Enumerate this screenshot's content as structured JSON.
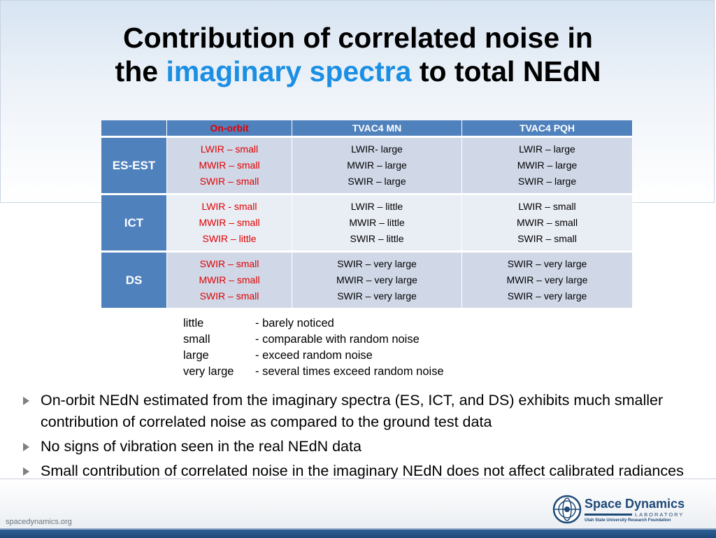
{
  "title": {
    "line1": "Contribution of correlated noise in",
    "line2_prefix": "the",
    "line2_accent": "imaginary spectra",
    "line2_suffix": "to total NEdN"
  },
  "table": {
    "headers": [
      "",
      "On-orbit",
      "TVAC4 MN",
      "TVAC4 PQH"
    ],
    "rows": [
      {
        "label": "ES-EST",
        "cells": [
          [
            "LWIR – small",
            "MWIR – small",
            "SWIR – small"
          ],
          [
            "LWIR- large",
            "MWIR – large",
            "SWIR – large"
          ],
          [
            "LWIR – large",
            "MWIR – large",
            "SWIR – large"
          ]
        ]
      },
      {
        "label": "ICT",
        "cells": [
          [
            "LWIR - small",
            "MWIR – small",
            "SWIR – little"
          ],
          [
            "LWIR – little",
            "MWIR – little",
            "SWIR – little"
          ],
          [
            "LWIR – small",
            "MWIR – small",
            "SWIR – small"
          ]
        ]
      },
      {
        "label": "DS",
        "cells": [
          [
            "SWIR – small",
            "MWIR – small",
            "SWIR – small"
          ],
          [
            "SWIR – very large",
            "MWIR – very large",
            "SWIR – very large"
          ],
          [
            "SWIR – very large",
            "MWIR – very large",
            "SWIR – very large"
          ]
        ]
      }
    ],
    "colors": {
      "header_bg": "#4f81bd",
      "onorbit_text": "#e00000",
      "row_dark": "#d0d8e8",
      "row_light": "#e9edf4"
    }
  },
  "legend": [
    {
      "term": "little",
      "desc": "- barely noticed"
    },
    {
      "term": "small",
      "desc": "- comparable with random noise"
    },
    {
      "term": "large",
      "desc": "- exceed random noise"
    },
    {
      "term": "very large",
      "desc": "- several times exceed random noise"
    }
  ],
  "bullets": [
    "On-orbit NEdN estimated from the imaginary spectra (ES, ICT, and DS) exhibits much smaller contribution of correlated noise as compared to the ground test data",
    "No signs of vibration seen in the real NEdN data",
    "Small contribution of correlated noise in the imaginary NEdN does not affect calibrated radiances"
  ],
  "footer": {
    "url": "spacedynamics.org",
    "logo_name": "Space Dynamics",
    "logo_sub": "LABORATORY",
    "logo_org": "Utah State University Research Foundation"
  },
  "icons": {
    "bullet": "arrow-bullet-icon",
    "logo": "sdl-globe-logo-icon"
  },
  "accent_color": "#1a8fe3"
}
